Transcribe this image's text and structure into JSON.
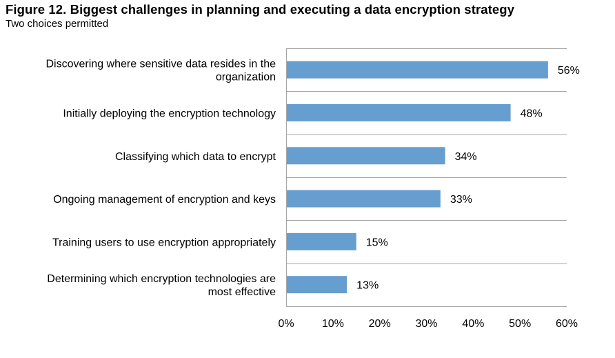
{
  "figure": {
    "title": "Figure 12.  Biggest challenges in planning and executing a data encryption strategy",
    "subtitle": "Two choices permitted"
  },
  "chart_data": {
    "type": "bar",
    "orientation": "horizontal",
    "categories": [
      [
        "Discovering where sensitive data resides in the",
        "organization"
      ],
      [
        "Initially deploying the encryption technology"
      ],
      [
        "Classifying which data to encrypt"
      ],
      [
        "Ongoing management of encryption and keys"
      ],
      [
        "Training users to use encryption appropriately"
      ],
      [
        "Determining which encryption technologies are",
        "most effective"
      ]
    ],
    "values": [
      56,
      48,
      34,
      33,
      15,
      13
    ],
    "value_labels": [
      "56%",
      "48%",
      "34%",
      "33%",
      "15%",
      "13%"
    ],
    "x_ticks": [
      "0%",
      "10%",
      "20%",
      "30%",
      "40%",
      "50%",
      "60%"
    ],
    "xlim": [
      0,
      60
    ],
    "grid": "horizontal separators between categories",
    "bar_color": "#669ECF",
    "grid_color": "#A6A6A6"
  }
}
